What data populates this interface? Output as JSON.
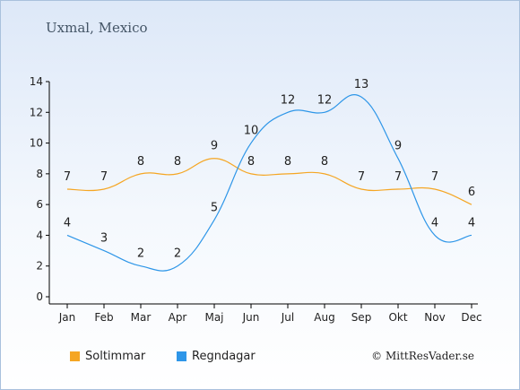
{
  "chart_data": {
    "type": "line",
    "title": "Uxmal, Mexico",
    "categories": [
      "Jan",
      "Feb",
      "Mar",
      "Apr",
      "Maj",
      "Jun",
      "Jul",
      "Aug",
      "Sep",
      "Okt",
      "Nov",
      "Dec"
    ],
    "ylim": [
      0,
      14
    ],
    "yticks": [
      "0",
      "2",
      "4",
      "6",
      "8",
      "10",
      "12",
      "14"
    ],
    "grid": false,
    "legend_placement": "bottom-left",
    "series": [
      {
        "name": "Soltimmar",
        "color": "#f5a623",
        "values": [
          7,
          7,
          8,
          8,
          9,
          8,
          8,
          8,
          7,
          7,
          7,
          6
        ]
      },
      {
        "name": "Regndagar",
        "color": "#2e96e8",
        "values": [
          4,
          3,
          2,
          2,
          5,
          10,
          12,
          12,
          13,
          9,
          4,
          4
        ]
      }
    ]
  },
  "credit": "© MittResVader.se"
}
